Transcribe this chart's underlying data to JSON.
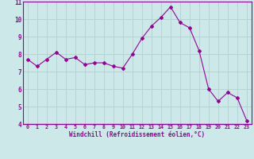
{
  "x": [
    0,
    1,
    2,
    3,
    4,
    5,
    6,
    7,
    8,
    9,
    10,
    11,
    12,
    13,
    14,
    15,
    16,
    17,
    18,
    19,
    20,
    21,
    22,
    23
  ],
  "y": [
    7.7,
    7.3,
    7.7,
    8.1,
    7.7,
    7.8,
    7.4,
    7.5,
    7.5,
    7.3,
    7.2,
    8.0,
    8.9,
    9.6,
    10.1,
    10.7,
    9.8,
    9.5,
    8.2,
    6.0,
    5.3,
    5.8,
    5.5,
    4.2
  ],
  "line_color": "#990099",
  "marker": "D",
  "marker_size": 2,
  "bg_color": "#cce8e8",
  "grid_color": "#b0d0d0",
  "xlabel": "Windchill (Refroidissement éolien,°C)",
  "ylim": [
    4,
    11
  ],
  "xlim": [
    -0.5,
    23.5
  ],
  "yticks": [
    4,
    5,
    6,
    7,
    8,
    9,
    10,
    11
  ],
  "xticks": [
    0,
    1,
    2,
    3,
    4,
    5,
    6,
    7,
    8,
    9,
    10,
    11,
    12,
    13,
    14,
    15,
    16,
    17,
    18,
    19,
    20,
    21,
    22,
    23
  ],
  "tick_color": "#990099",
  "label_color": "#990099",
  "spine_color": "#990099"
}
